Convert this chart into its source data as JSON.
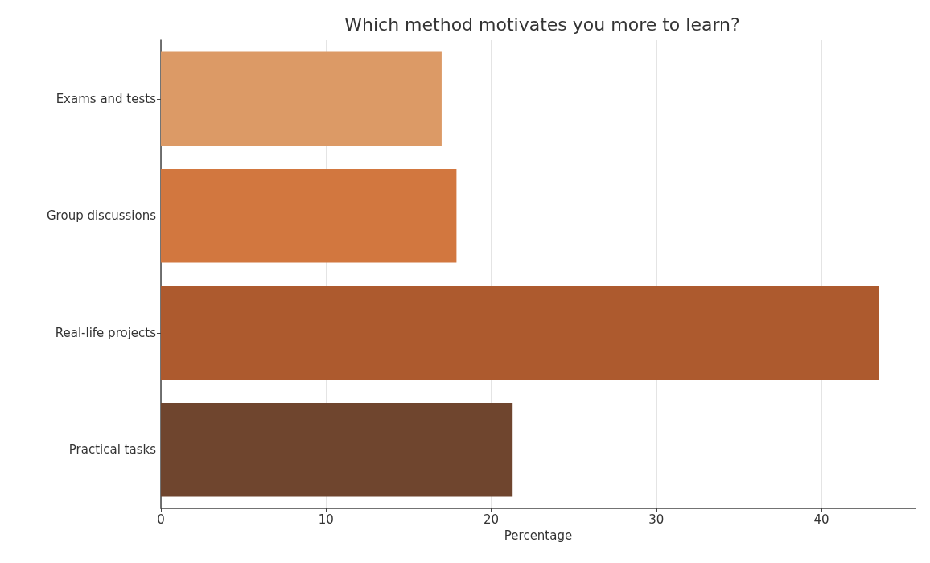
{
  "chart_data": {
    "type": "bar",
    "orientation": "horizontal",
    "title": "Which method motivates you more to learn?",
    "xlabel": "Percentage",
    "categories": [
      "Exams and tests",
      "Group discussions",
      "Real-life projects",
      "Practical tasks"
    ],
    "values": [
      17.0,
      17.9,
      43.5,
      21.3
    ],
    "colors": [
      "#dc9a66",
      "#d2773f",
      "#ad5a2e",
      "#6f452e"
    ],
    "xlim": [
      0,
      45.7
    ],
    "xticks": [
      0,
      10,
      20,
      30,
      40
    ],
    "grid": "x"
  }
}
